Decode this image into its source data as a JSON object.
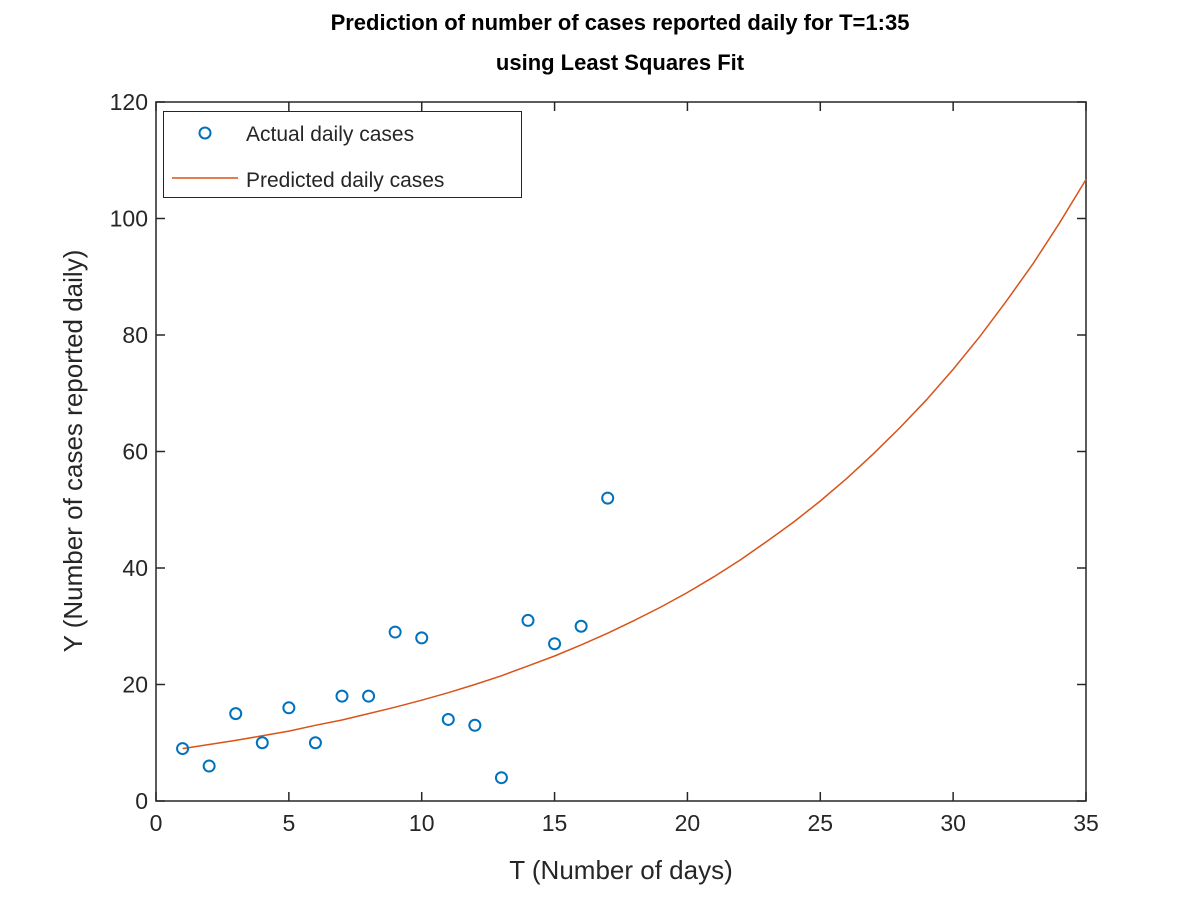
{
  "chart_data": {
    "type": "scatter",
    "title": [
      "Prediction of number of cases reported daily for T=1:35",
      "using Least Squares Fit"
    ],
    "xlabel": "T (Number of days)",
    "ylabel": "Y (Number of cases reported daily)",
    "xlim": [
      0,
      35
    ],
    "ylim": [
      0,
      120
    ],
    "xticks": [
      0,
      5,
      10,
      15,
      20,
      25,
      30,
      35
    ],
    "yticks": [
      0,
      20,
      40,
      60,
      80,
      100,
      120
    ],
    "grid": false,
    "legend_position": "top-left",
    "series": [
      {
        "name": "Actual daily cases",
        "kind": "markers",
        "marker": "circle",
        "color": "#0072bd",
        "x": [
          1,
          2,
          3,
          4,
          5,
          6,
          7,
          8,
          9,
          10,
          11,
          12,
          13,
          14,
          15,
          16,
          17
        ],
        "y": [
          9,
          6,
          15,
          10,
          16,
          10,
          18,
          18,
          29,
          28,
          14,
          13,
          4,
          31,
          27,
          30,
          52
        ]
      },
      {
        "name": "Predicted daily cases",
        "kind": "line",
        "color": "#d95319",
        "x": [
          1,
          2,
          3,
          4,
          5,
          6,
          7,
          8,
          9,
          10,
          11,
          12,
          13,
          14,
          15,
          16,
          17,
          18,
          19,
          20,
          21,
          22,
          23,
          24,
          25,
          26,
          27,
          28,
          29,
          30,
          31,
          32,
          33,
          34,
          35
        ],
        "y": [
          9.0,
          9.7,
          10.4,
          11.2,
          12.0,
          13.0,
          13.9,
          15.0,
          16.1,
          17.3,
          18.6,
          20.0,
          21.5,
          23.2,
          24.9,
          26.8,
          28.8,
          31.0,
          33.3,
          35.8,
          38.5,
          41.4,
          44.6,
          47.9,
          51.5,
          55.4,
          59.6,
          64.1,
          68.9,
          74.1,
          79.7,
          85.8,
          92.2,
          99.2,
          106.7
        ]
      }
    ]
  }
}
